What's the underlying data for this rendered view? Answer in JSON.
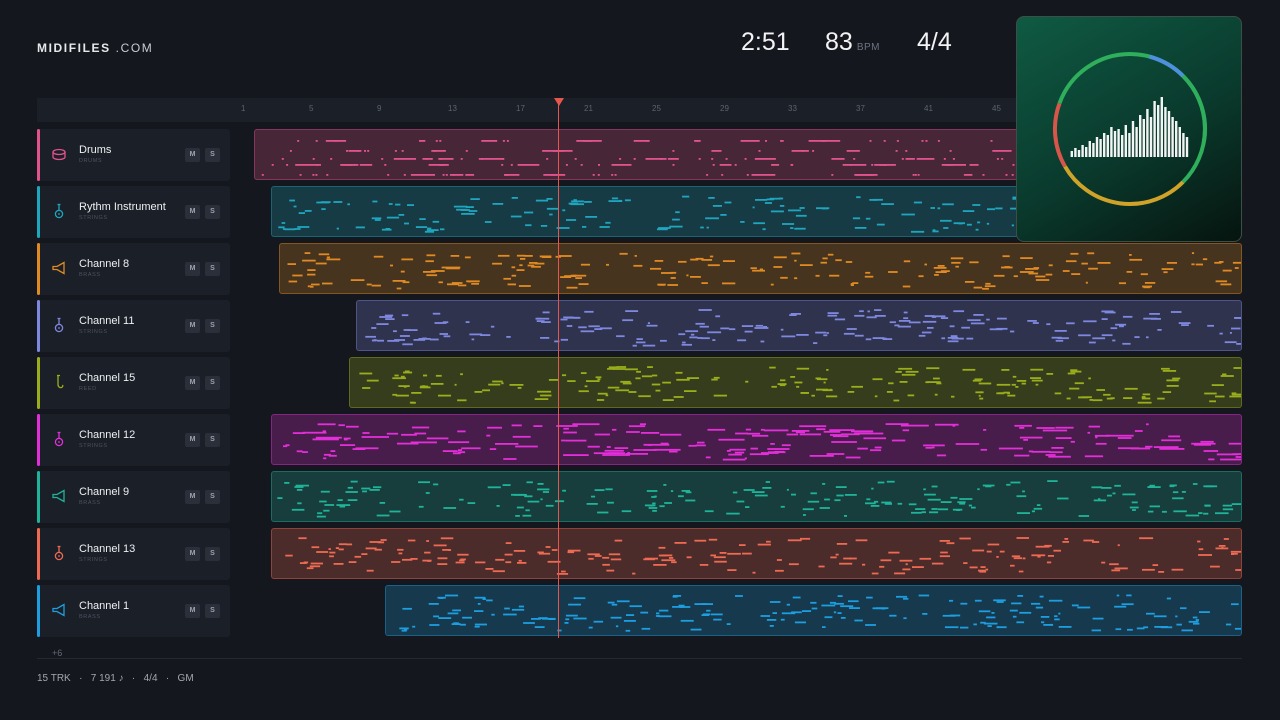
{
  "header": {
    "logo_bold": "MIDIFILES",
    "logo_light": " .COM",
    "duration": "2:51",
    "tempo": "83",
    "tempo_unit": "BPM",
    "time_signature": "4/4"
  },
  "ruler": {
    "ticks": [
      "1",
      "5",
      "9",
      "13",
      "17",
      "21",
      "25",
      "29",
      "33",
      "37",
      "41",
      "45"
    ]
  },
  "tracks": [
    {
      "name": "Drums",
      "category": "DRUMS",
      "color": "#e0538d",
      "icon": "drum-icon",
      "mute": "M",
      "solo": "S"
    },
    {
      "name": "Rythm Instrument",
      "category": "STRINGS",
      "color": "#1fa6bf",
      "icon": "guitar-icon",
      "mute": "M",
      "solo": "S"
    },
    {
      "name": "Channel 8",
      "category": "BRASS",
      "color": "#e08a24",
      "icon": "horn-icon",
      "mute": "M",
      "solo": "S"
    },
    {
      "name": "Channel 11",
      "category": "STRINGS",
      "color": "#7f88e0",
      "icon": "guitar-icon",
      "mute": "M",
      "solo": "S"
    },
    {
      "name": "Channel 15",
      "category": "REED",
      "color": "#9aae1c",
      "icon": "saxophone-icon",
      "mute": "M",
      "solo": "S"
    },
    {
      "name": "Channel 12",
      "category": "STRINGS",
      "color": "#e32fd9",
      "icon": "guitar-icon",
      "mute": "M",
      "solo": "S"
    },
    {
      "name": "Channel 9",
      "category": "BRASS",
      "color": "#1fb39a",
      "icon": "horn-icon",
      "mute": "M",
      "solo": "S"
    },
    {
      "name": "Channel 13",
      "category": "STRINGS",
      "color": "#ee6a52",
      "icon": "guitar-icon",
      "mute": "M",
      "solo": "S"
    },
    {
      "name": "Channel 1",
      "category": "BRASS",
      "color": "#1d9ee0",
      "icon": "horn-icon",
      "mute": "M",
      "solo": "S"
    }
  ],
  "more_tracks": "+6",
  "footer": {
    "tracks": "15 TRK",
    "notes": "7 191 ♪",
    "meter": "4/4",
    "standard": "GM",
    "sep": "·"
  },
  "playhead_bar": 19.2,
  "colors": {
    "background": "#14171d",
    "panel": "#1b1f27",
    "playhead": "#e4564e",
    "visualizer_bg": "#0f5a43"
  }
}
